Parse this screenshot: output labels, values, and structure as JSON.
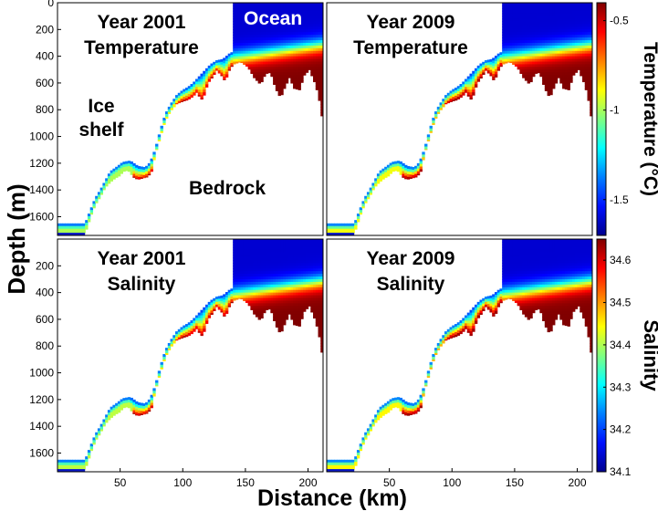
{
  "figure": {
    "y_label": "Depth (m)",
    "x_label": "Distance (km)"
  },
  "colors": {
    "cold": "#1020e0",
    "warm": "#7a0a0a",
    "ice": "#0a18c8",
    "gradient": [
      "#00008f",
      "#0010ff",
      "#0080ff",
      "#00ffff",
      "#80ff80",
      "#ffff00",
      "#ff8000",
      "#ff0000",
      "#800000"
    ]
  },
  "chart_data": [
    {
      "type": "heatmap",
      "panel": "top-left",
      "title_lines": [
        "Year 2001",
        "Temperature"
      ],
      "annotations": [
        "Ocean",
        "Ice",
        "shelf",
        "Bedrock"
      ],
      "variable": "temperature",
      "xlim": [
        0,
        212
      ],
      "ylim": [
        1740,
        0
      ],
      "xticks": [],
      "yticks": [
        0,
        200,
        400,
        600,
        800,
        1000,
        1200,
        1400,
        1600
      ],
      "warmth": 0.55
    },
    {
      "type": "heatmap",
      "panel": "top-right",
      "title_lines": [
        "Year 2009",
        "Temperature"
      ],
      "annotations": [],
      "variable": "temperature",
      "xlim": [
        0,
        212
      ],
      "ylim": [
        1740,
        0
      ],
      "xticks": [],
      "yticks": [],
      "warmth": 0.75
    },
    {
      "type": "heatmap",
      "panel": "bottom-left",
      "title_lines": [
        "Year 2001",
        "Salinity"
      ],
      "annotations": [],
      "variable": "salinity",
      "xlim": [
        0,
        212
      ],
      "ylim": [
        1740,
        0
      ],
      "xticks": [
        50,
        100,
        150,
        200
      ],
      "yticks": [
        200,
        400,
        600,
        800,
        1000,
        1200,
        1400,
        1600
      ],
      "warmth": 0.6
    },
    {
      "type": "heatmap",
      "panel": "bottom-right",
      "title_lines": [
        "Year 2009",
        "Salinity"
      ],
      "annotations": [],
      "variable": "salinity",
      "xlim": [
        0,
        212
      ],
      "ylim": [
        1740,
        0
      ],
      "xticks": [
        50,
        100,
        150,
        200
      ],
      "yticks": [],
      "warmth": 0.8
    }
  ],
  "colorbars": [
    {
      "label": "Temperature (°C)",
      "ticks": [
        "-0.5",
        "-1",
        "-1.5"
      ],
      "tick_values": [
        -0.5,
        -1,
        -1.5
      ],
      "range": [
        -1.7,
        -0.4
      ]
    },
    {
      "label": "Salinity",
      "ticks": [
        "34.6",
        "34.5",
        "34.4",
        "34.3",
        "34.2",
        "34.1"
      ],
      "tick_values": [
        34.6,
        34.5,
        34.4,
        34.3,
        34.2,
        34.1
      ],
      "range": [
        34.1,
        34.65
      ]
    }
  ]
}
